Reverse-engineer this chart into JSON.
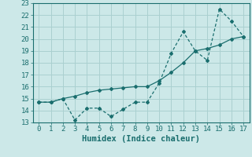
{
  "xlabel": "Humidex (Indice chaleur)",
  "background_color": "#cce8e8",
  "grid_color": "#aad0d0",
  "line_color": "#1a6e6e",
  "xlim": [
    -0.5,
    17.5
  ],
  "ylim": [
    13,
    23
  ],
  "yticks": [
    13,
    14,
    15,
    16,
    17,
    18,
    19,
    20,
    21,
    22,
    23
  ],
  "xticks": [
    0,
    1,
    2,
    3,
    4,
    5,
    6,
    7,
    8,
    9,
    10,
    11,
    12,
    13,
    14,
    15,
    16,
    17
  ],
  "series1_x": [
    0,
    1,
    2,
    3,
    4,
    5,
    6,
    7,
    8,
    9,
    10,
    11,
    12,
    13,
    14,
    15,
    16,
    17
  ],
  "series1_y": [
    14.7,
    14.7,
    15.0,
    13.2,
    14.2,
    14.2,
    13.5,
    14.1,
    14.7,
    14.7,
    16.3,
    18.8,
    20.6,
    19.0,
    18.2,
    22.5,
    21.5,
    20.2
  ],
  "series2_x": [
    0,
    1,
    2,
    3,
    4,
    5,
    6,
    7,
    8,
    9,
    10,
    11,
    12,
    13,
    14,
    15,
    16,
    17
  ],
  "series2_y": [
    14.7,
    14.7,
    15.0,
    15.2,
    15.5,
    15.7,
    15.8,
    15.9,
    16.0,
    16.0,
    16.5,
    17.2,
    18.0,
    19.0,
    19.2,
    19.5,
    20.0,
    20.2
  ],
  "font_color": "#1a6e6e",
  "tick_fontsize": 6.5,
  "label_fontsize": 7.5
}
